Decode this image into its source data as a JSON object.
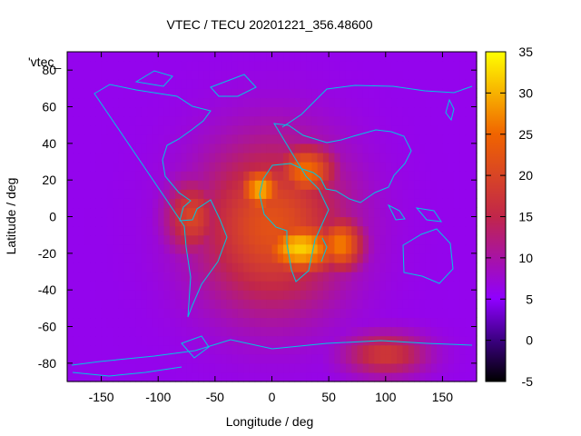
{
  "chart_data": {
    "type": "heatmap",
    "title": "VTEC / TECU 20201221_356.48600",
    "xlabel": "Longitude / deg",
    "ylabel": "Latitude / deg",
    "legend_entry": "'vtec_",
    "xlim": [
      -180,
      180
    ],
    "ylim": [
      -90,
      90
    ],
    "xticks": [
      -150,
      -100,
      -50,
      0,
      50,
      100,
      150
    ],
    "yticks": [
      -80,
      -60,
      -40,
      -20,
      0,
      20,
      40,
      60,
      80
    ],
    "colorbar": {
      "range": [
        -5,
        35
      ],
      "ticks": [
        -5,
        0,
        5,
        10,
        15,
        20,
        25,
        30,
        35
      ]
    },
    "grid": false,
    "features": [
      {
        "lon": 0,
        "lat": -5,
        "value": 22,
        "sx": 45,
        "sy": 32
      },
      {
        "lon": -10,
        "lat": 15,
        "value": 30,
        "sx": 14,
        "sy": 9
      },
      {
        "lon": 25,
        "lat": -17,
        "value": 32,
        "sx": 25,
        "sy": 10
      },
      {
        "lon": 60,
        "lat": -15,
        "value": 27,
        "sx": 14,
        "sy": 10
      },
      {
        "lon": 30,
        "lat": 25,
        "value": 26,
        "sx": 18,
        "sy": 10
      },
      {
        "lon": -70,
        "lat": 0,
        "value": 20,
        "sx": 16,
        "sy": 14
      },
      {
        "lon": 100,
        "lat": -75,
        "value": 18,
        "sx": 25,
        "sy": 8
      }
    ]
  }
}
